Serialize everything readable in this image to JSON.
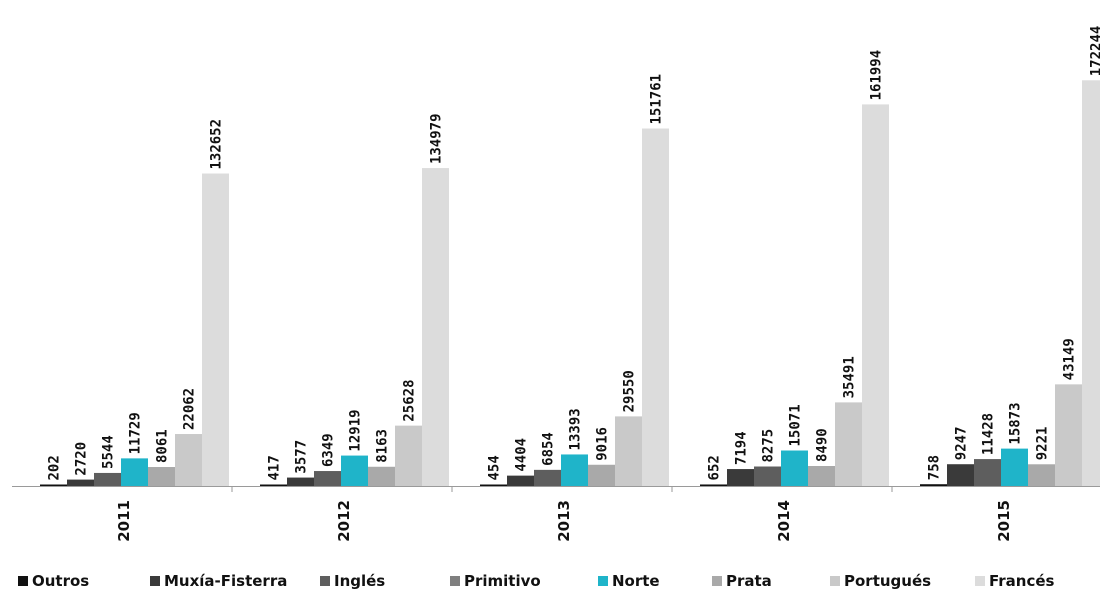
{
  "chart_data": {
    "type": "bar",
    "title": "",
    "xlabel": "",
    "ylabel": "",
    "ylim": [
      0,
      180000
    ],
    "grid": false,
    "legend_position": "bottom",
    "categories": [
      "2011",
      "2012",
      "2013",
      "2014",
      "2015"
    ],
    "series": [
      {
        "name": "Outros",
        "color": "#111111",
        "values": [
          202,
          417,
          454,
          652,
          758
        ]
      },
      {
        "name": "Muxía-Fisterra",
        "color": "#3a3a3a",
        "values": [
          2720,
          3577,
          4404,
          7194,
          9247
        ]
      },
      {
        "name": "Inglés",
        "color": "#5e5e5e",
        "values": [
          5544,
          6349,
          6854,
          8275,
          11428
        ]
      },
      {
        "name": "Primitivo",
        "color": "#7f7f7f",
        "values": [
          11729,
          12919,
          13393,
          15071,
          15873
        ]
      },
      {
        "name": "Norte",
        "color": "#1fb4c9",
        "values": [
          11729,
          12919,
          13393,
          15071,
          15873
        ]
      },
      {
        "name": "Prata",
        "color": "#a9a9a9",
        "values": [
          8061,
          8163,
          9016,
          8490,
          9221
        ]
      },
      {
        "name": "Portugués",
        "color": "#c9c9c9",
        "values": [
          22062,
          25628,
          29550,
          35491,
          43149
        ]
      },
      {
        "name": "Francés",
        "color": "#dcdcdc",
        "values": [
          132652,
          134979,
          151761,
          161994,
          172244
        ]
      }
    ],
    "label_series": [
      "Outros",
      "Muxía-Fisterra",
      "Inglés",
      "Norte",
      "Prata",
      "Portugués",
      "Francés"
    ],
    "drawn_series": [
      "Outros",
      "Muxía-Fisterra",
      "Inglés",
      "Norte",
      "Prata",
      "Portugués",
      "Francés"
    ]
  }
}
